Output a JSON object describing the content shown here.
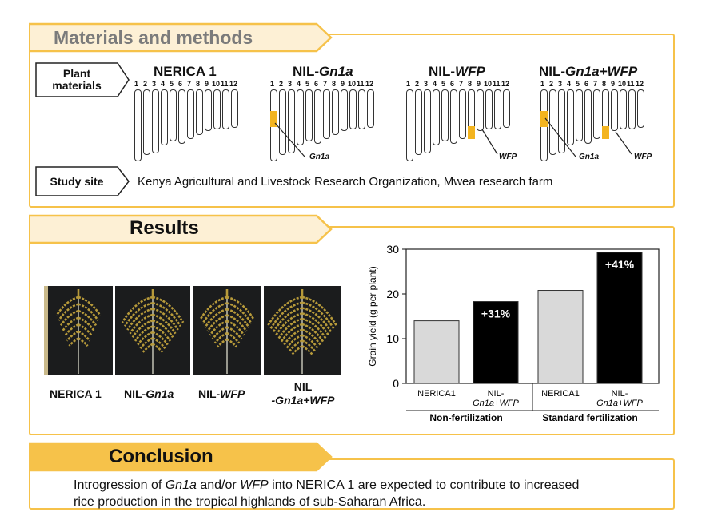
{
  "materials": {
    "title": "Materials and methods",
    "plant_label": [
      "Plant",
      "materials"
    ],
    "lines": [
      {
        "pre": "NERICA 1",
        "it": "",
        "post": ""
      },
      {
        "pre": "NIL-",
        "it": "Gn1a",
        "post": ""
      },
      {
        "pre": "NIL-",
        "it": "WFP",
        "post": ""
      },
      {
        "pre": "NIL-",
        "it": "Gn1a+WFP",
        "post": ""
      }
    ],
    "chromosome_numbers": [
      "1",
      "2",
      "3",
      "4",
      "5",
      "6",
      "7",
      "8",
      "9",
      "10",
      "11",
      "12"
    ],
    "gene_labels": {
      "gn1a": "Gn1a",
      "wfp": "WFP"
    },
    "study_label": "Study site",
    "study_site": "Kenya Agricultural and Livestock Research Organization, Mwea research farm"
  },
  "results": {
    "title": "Results",
    "photo_labels": [
      {
        "pre": "NERICA 1",
        "it": "",
        "line2": ""
      },
      {
        "pre": "NIL-",
        "it": "Gn1a",
        "line2": ""
      },
      {
        "pre": "NIL-",
        "it": "WFP",
        "line2": ""
      },
      {
        "pre": "NIL",
        "it": "",
        "line2": "-Gn1a+WFP"
      }
    ]
  },
  "chart_data": {
    "type": "bar",
    "ylabel": "Grain yield (g per plant)",
    "ylim": [
      0,
      30
    ],
    "yticks": [
      "0",
      "10",
      "20",
      "30"
    ],
    "groups": [
      {
        "name": "Non-fertilization",
        "bars": [
          {
            "label": "NERICA1",
            "value": 14.0,
            "color": "#d9d9d9",
            "annotation": ""
          },
          {
            "label": "NIL-Gn1a+WFP",
            "label_lines": [
              "NIL-",
              "Gn1a+WFP"
            ],
            "value": 18.3,
            "color": "#000000",
            "annotation": "+31%"
          }
        ]
      },
      {
        "name": "Standard fertilization",
        "bars": [
          {
            "label": "NERICA1",
            "value": 20.8,
            "color": "#d9d9d9",
            "annotation": ""
          },
          {
            "label": "NIL-Gn1a+WFP",
            "label_lines": [
              "NIL-",
              "Gn1a+WFP"
            ],
            "value": 29.3,
            "color": "#000000",
            "annotation": "+41%"
          }
        ]
      }
    ]
  },
  "conclusion": {
    "title": "Conclusion",
    "line1": {
      "a": "Introgression of ",
      "b": "Gn1a",
      "c": " and/or ",
      "d": "WFP",
      "e": " into NERICA 1 are expected to contribute to increased"
    },
    "line2": "rice production in the tropical highlands of sub-Saharan Africa."
  },
  "colors": {
    "accent": "#f6c24a",
    "band": "#f3b41f",
    "dark_band": "#e3a200"
  }
}
